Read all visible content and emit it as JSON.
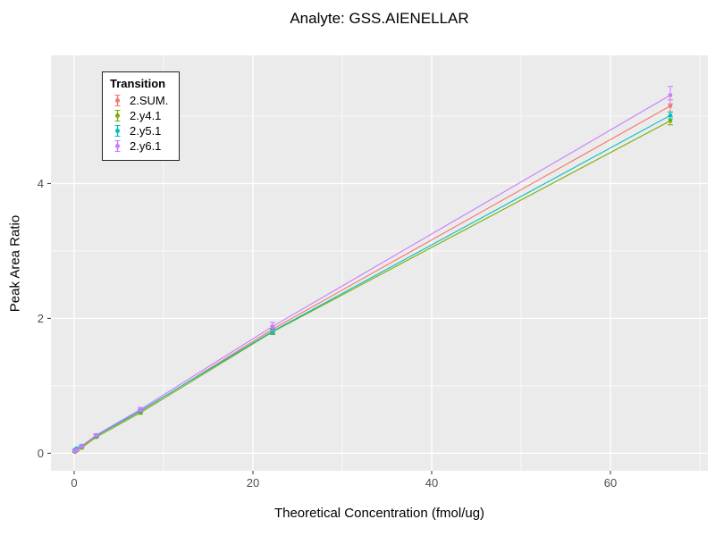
{
  "chart_data": {
    "type": "line",
    "title": "Analyte: GSS.AIENELLAR",
    "xlabel": "Theoretical Concentration (fmol/ug)",
    "ylabel": "Peak Area Ratio",
    "legend_title": "Transition",
    "legend_position": "top-left-inside",
    "grid": true,
    "panel_background": "#EBEBEB",
    "grid_major_color": "#FFFFFF",
    "grid_minor_color": "#FFFFFF",
    "tick_label_color": "#4D4D4D",
    "xlim": [
      -2.6,
      70.9
    ],
    "ylim": [
      -0.26,
      5.9
    ],
    "x_major_ticks": [
      0,
      20,
      40,
      60
    ],
    "x_minor_ticks": [
      10,
      30,
      50,
      70
    ],
    "y_major_ticks": [
      0,
      2,
      4
    ],
    "y_minor_ticks": [
      1,
      3,
      5
    ],
    "x": [
      0.09,
      0.27,
      0.82,
      2.47,
      7.4,
      22.2,
      66.7
    ],
    "series": [
      {
        "name": "2.SUM.",
        "color": "#F8766D",
        "values": [
          0.03,
          0.05,
          0.09,
          0.26,
          0.62,
          1.84,
          5.15
        ],
        "errors": [
          0.01,
          0.01,
          0.01,
          0.02,
          0.02,
          0.05,
          0.09
        ]
      },
      {
        "name": "2.y4.1",
        "color": "#7CAE00",
        "values": [
          0.02,
          0.04,
          0.08,
          0.24,
          0.6,
          1.8,
          4.93
        ],
        "errors": [
          0.01,
          0.01,
          0.01,
          0.01,
          0.02,
          0.04,
          0.06
        ]
      },
      {
        "name": "2.y5.1",
        "color": "#00BFC4",
        "values": [
          0.05,
          0.07,
          0.11,
          0.26,
          0.63,
          1.81,
          5.01
        ],
        "errors": [
          0.01,
          0.01,
          0.01,
          0.02,
          0.02,
          0.04,
          0.05
        ]
      },
      {
        "name": "2.y6.1",
        "color": "#C77CFF",
        "values": [
          0.03,
          0.05,
          0.1,
          0.27,
          0.65,
          1.88,
          5.31
        ],
        "errors": [
          0.01,
          0.01,
          0.01,
          0.02,
          0.03,
          0.06,
          0.13
        ]
      }
    ]
  }
}
